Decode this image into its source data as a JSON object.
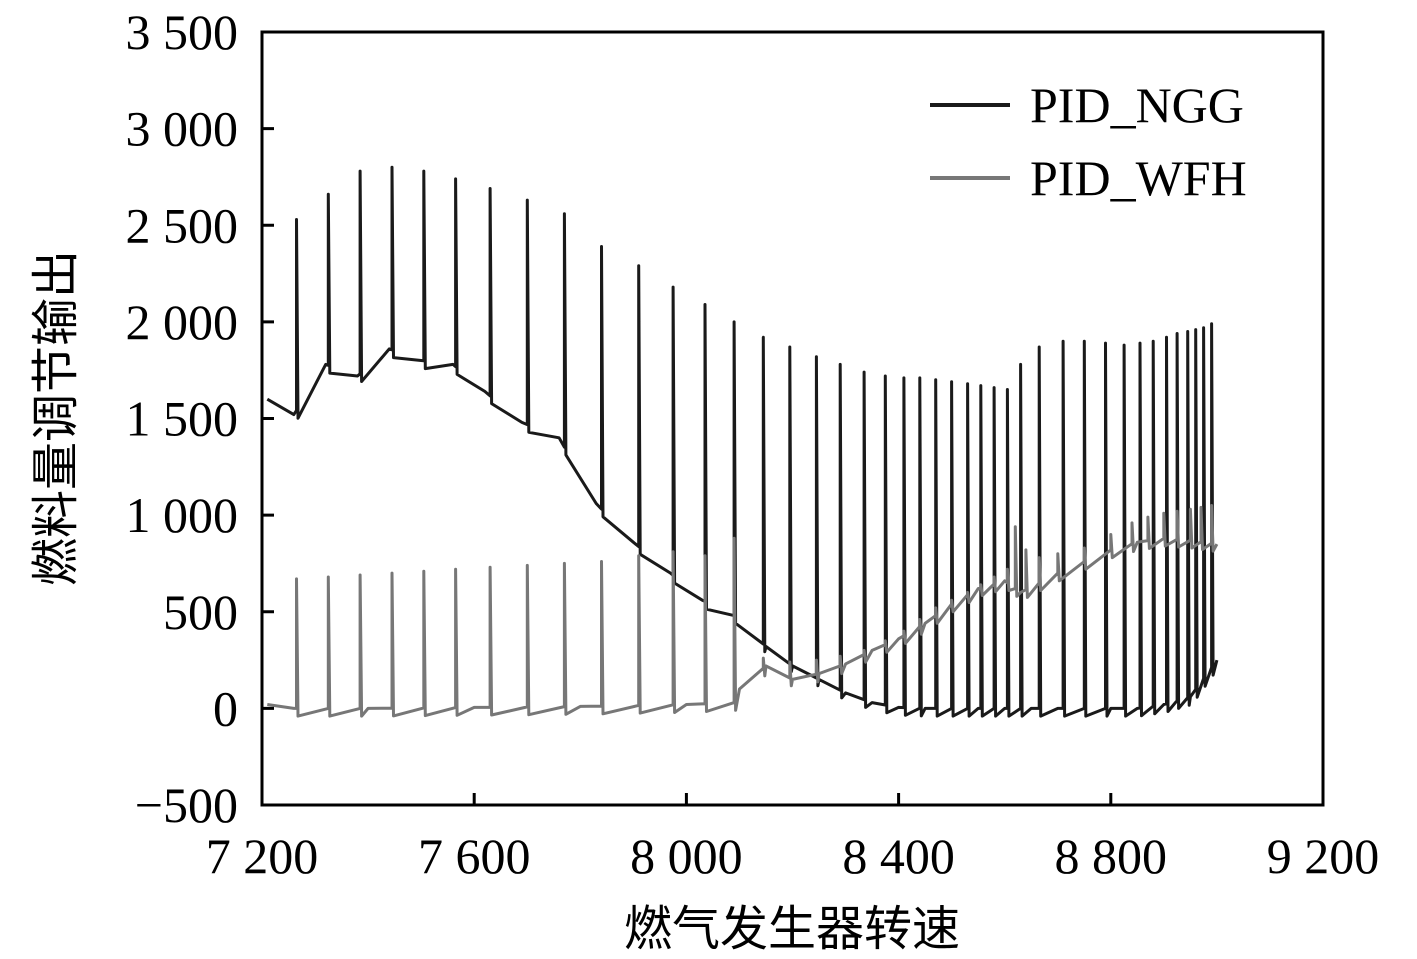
{
  "chart_data": {
    "type": "line",
    "xlabel": "燃气发生器转速",
    "ylabel": "燃料量调节输出",
    "xlim": [
      7200,
      9200
    ],
    "ylim": [
      -500,
      3500
    ],
    "x_ticks": [
      7200,
      7600,
      8000,
      8400,
      8800,
      9200
    ],
    "x_tick_labels": [
      "7 200",
      "7 600",
      "8 000",
      "8 400",
      "8 800",
      "9 200"
    ],
    "y_ticks": [
      -500,
      0,
      500,
      1000,
      1500,
      2000,
      2500,
      3000,
      3500
    ],
    "y_tick_labels": [
      "−500",
      "0",
      "500",
      "1 000",
      "1 500",
      "2 000",
      "2 500",
      "3 000",
      "3 500"
    ],
    "legend_position": "top-right",
    "grid": false,
    "series": [
      {
        "name": "PID_NGG",
        "color": "#1a1a1a",
        "base_x": [
          7210,
          7260,
          7320,
          7380,
          7440,
          7500,
          7560,
          7620,
          7690,
          7760,
          7830,
          7900,
          7970,
          8030,
          8090,
          8150,
          8200,
          8250,
          8300,
          8350,
          8400,
          8450,
          8500,
          8550,
          8600,
          8650,
          8700,
          8750,
          8800,
          8850,
          8900,
          8950,
          9000
        ],
        "base_y": [
          1600,
          1520,
          1780,
          1720,
          1860,
          1800,
          1780,
          1640,
          1480,
          1400,
          1060,
          860,
          700,
          560,
          480,
          320,
          220,
          150,
          80,
          30,
          5,
          0,
          0,
          0,
          0,
          0,
          0,
          0,
          0,
          0,
          20,
          60,
          250
        ],
        "spike_x": [
          7265,
          7325,
          7385,
          7445,
          7505,
          7565,
          7630,
          7700,
          7770,
          7840,
          7910,
          7975,
          8035,
          8090,
          8145,
          8195,
          8245,
          8290,
          8335,
          8375,
          8410,
          8440,
          8470,
          8500,
          8530,
          8555,
          8580,
          8605,
          8630,
          8665,
          8710,
          8750,
          8790,
          8825,
          8855,
          8880,
          8905,
          8925,
          8945,
          8960,
          8975,
          8990
        ],
        "spike_y": [
          2530,
          2660,
          2780,
          2800,
          2780,
          2740,
          2690,
          2630,
          2560,
          2390,
          2290,
          2180,
          2090,
          2000,
          1920,
          1870,
          1820,
          1780,
          1740,
          1720,
          1710,
          1710,
          1700,
          1690,
          1680,
          1670,
          1660,
          1650,
          1780,
          1870,
          1900,
          1900,
          1890,
          1880,
          1890,
          1900,
          1920,
          1940,
          1950,
          1960,
          1970,
          1990
        ]
      },
      {
        "name": "PID_WFH",
        "color": "#777777",
        "base_x": [
          7210,
          7260,
          7400,
          7600,
          7800,
          8000,
          8090,
          8100,
          8150,
          8200,
          8250,
          8300,
          8350,
          8400,
          8450,
          8500,
          8550,
          8600,
          8630,
          8700,
          8800,
          8850,
          8900,
          8950,
          9000
        ],
        "base_y": [
          20,
          0,
          0,
          5,
          10,
          20,
          30,
          100,
          220,
          150,
          180,
          230,
          300,
          360,
          440,
          540,
          620,
          660,
          600,
          700,
          820,
          860,
          880,
          870,
          850
        ],
        "spike_x": [
          7265,
          7325,
          7385,
          7445,
          7505,
          7565,
          7630,
          7700,
          7770,
          7840,
          7910,
          7975,
          8035,
          8090,
          8145,
          8195,
          8245,
          8290,
          8335,
          8375,
          8410,
          8440,
          8470,
          8500,
          8530,
          8555,
          8580,
          8605,
          8620,
          8640,
          8665,
          8700,
          8750,
          8800,
          8840,
          8870,
          8900,
          8925,
          8950,
          8970,
          8990
        ],
        "spike_y": [
          670,
          680,
          690,
          700,
          710,
          720,
          730,
          740,
          750,
          760,
          790,
          810,
          790,
          880,
          260,
          240,
          250,
          270,
          300,
          350,
          400,
          460,
          520,
          560,
          600,
          640,
          680,
          720,
          940,
          820,
          780,
          800,
          830,
          900,
          960,
          990,
          1010,
          1020,
          1030,
          1040,
          1050
        ]
      }
    ]
  }
}
